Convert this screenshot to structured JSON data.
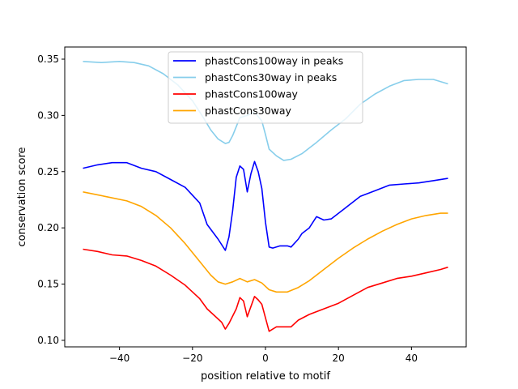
{
  "chart_data": {
    "type": "line",
    "title": "",
    "xlabel": "position relative to motif",
    "ylabel": "conservation score",
    "xlim": [
      -55,
      55
    ],
    "ylim": [
      0.0942,
      0.3608
    ],
    "xticks": [
      -40,
      -20,
      0,
      20,
      40
    ],
    "xtick_labels": [
      "−40",
      "−20",
      "0",
      "20",
      "40"
    ],
    "yticks": [
      0.1,
      0.15,
      0.2,
      0.25,
      0.3,
      0.35
    ],
    "ytick_labels": [
      "0.10",
      "0.15",
      "0.20",
      "0.25",
      "0.30",
      "0.35"
    ],
    "grid": false,
    "legend_position": "top-center",
    "series": [
      {
        "name": "phastCons100way in peaks",
        "color": "#0000ff",
        "x": [
          -50,
          -46,
          -42,
          -38,
          -34,
          -30,
          -26,
          -22,
          -18,
          -16,
          -13,
          -11,
          -10,
          -9,
          -8,
          -7,
          -6,
          -5,
          -4,
          -3,
          -2,
          -1,
          0,
          1,
          2,
          4,
          6,
          7,
          9,
          10,
          12,
          14,
          16,
          18,
          22,
          26,
          30,
          34,
          38,
          42,
          46,
          50
        ],
        "y": [
          0.253,
          0.256,
          0.258,
          0.258,
          0.253,
          0.25,
          0.243,
          0.236,
          0.222,
          0.203,
          0.19,
          0.18,
          0.192,
          0.215,
          0.245,
          0.255,
          0.252,
          0.232,
          0.248,
          0.259,
          0.25,
          0.235,
          0.205,
          0.183,
          0.182,
          0.184,
          0.184,
          0.183,
          0.19,
          0.195,
          0.2,
          0.21,
          0.207,
          0.208,
          0.218,
          0.228,
          0.233,
          0.238,
          0.239,
          0.24,
          0.242,
          0.244
        ]
      },
      {
        "name": "phastCons30way in peaks",
        "color": "#87ceeb",
        "x": [
          -50,
          -45,
          -40,
          -36,
          -32,
          -28,
          -24,
          -20,
          -17,
          -15,
          -13,
          -11,
          -10,
          -9,
          -7,
          -5,
          -3,
          -1,
          0,
          1,
          3,
          5,
          7,
          10,
          14,
          18,
          22,
          26,
          30,
          34,
          38,
          42,
          46,
          50
        ],
        "y": [
          0.348,
          0.347,
          0.348,
          0.347,
          0.344,
          0.337,
          0.327,
          0.313,
          0.298,
          0.287,
          0.279,
          0.275,
          0.276,
          0.282,
          0.298,
          0.3,
          0.303,
          0.295,
          0.283,
          0.27,
          0.264,
          0.26,
          0.261,
          0.266,
          0.276,
          0.287,
          0.297,
          0.31,
          0.319,
          0.326,
          0.331,
          0.332,
          0.332,
          0.328
        ]
      },
      {
        "name": "phastCons100way",
        "color": "#ff0000",
        "x": [
          -50,
          -46,
          -42,
          -38,
          -34,
          -30,
          -26,
          -22,
          -18,
          -16,
          -14,
          -12,
          -11,
          -10,
          -8,
          -7,
          -6,
          -5,
          -4,
          -3,
          -2,
          -1,
          0,
          1,
          3,
          5,
          7,
          9,
          12,
          16,
          20,
          24,
          28,
          32,
          36,
          40,
          44,
          48,
          50
        ],
        "y": [
          0.181,
          0.179,
          0.176,
          0.175,
          0.171,
          0.166,
          0.158,
          0.149,
          0.137,
          0.128,
          0.122,
          0.116,
          0.11,
          0.115,
          0.128,
          0.138,
          0.135,
          0.121,
          0.13,
          0.139,
          0.136,
          0.132,
          0.12,
          0.108,
          0.112,
          0.112,
          0.112,
          0.118,
          0.123,
          0.128,
          0.133,
          0.14,
          0.147,
          0.151,
          0.155,
          0.157,
          0.16,
          0.163,
          0.165
        ]
      },
      {
        "name": "phastCons30way",
        "color": "#ffa500",
        "x": [
          -50,
          -44,
          -38,
          -34,
          -30,
          -26,
          -22,
          -18,
          -15,
          -13,
          -11,
          -9,
          -7,
          -5,
          -3,
          -1,
          1,
          3,
          6,
          9,
          12,
          16,
          20,
          24,
          28,
          32,
          36,
          40,
          44,
          48,
          50
        ],
        "y": [
          0.232,
          0.228,
          0.224,
          0.219,
          0.211,
          0.2,
          0.186,
          0.17,
          0.158,
          0.152,
          0.15,
          0.152,
          0.155,
          0.152,
          0.154,
          0.151,
          0.145,
          0.143,
          0.143,
          0.147,
          0.153,
          0.163,
          0.173,
          0.182,
          0.19,
          0.197,
          0.203,
          0.208,
          0.211,
          0.213,
          0.213
        ]
      }
    ]
  }
}
